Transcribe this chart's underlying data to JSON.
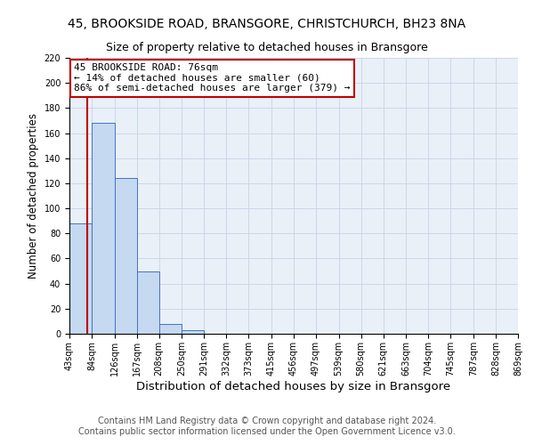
{
  "title": "45, BROOKSIDE ROAD, BRANSGORE, CHRISTCHURCH, BH23 8NA",
  "subtitle": "Size of property relative to detached houses in Bransgore",
  "xlabel": "Distribution of detached houses by size in Bransgore",
  "ylabel": "Number of detached properties",
  "bin_edges": [
    43,
    84,
    126,
    167,
    208,
    250,
    291,
    332,
    373,
    415,
    456,
    497,
    539,
    580,
    621,
    663,
    704,
    745,
    787,
    828,
    869
  ],
  "bin_counts": [
    88,
    168,
    124,
    50,
    8,
    3,
    0,
    0,
    0,
    0,
    0,
    0,
    0,
    0,
    0,
    0,
    0,
    0,
    0,
    0
  ],
  "bar_facecolor": "#c5d9f1",
  "bar_edgecolor": "#4472c4",
  "property_size": 76,
  "property_line_color": "#c00000",
  "annotation_text": "45 BROOKSIDE ROAD: 76sqm\n← 14% of detached houses are smaller (60)\n86% of semi-detached houses are larger (379) →",
  "annotation_box_edgecolor": "#c00000",
  "annotation_box_facecolor": "#ffffff",
  "ylim": [
    0,
    220
  ],
  "yticks": [
    0,
    20,
    40,
    60,
    80,
    100,
    120,
    140,
    160,
    180,
    200,
    220
  ],
  "grid_color": "#c8d8e8",
  "background_color": "#eaf0f8",
  "footer_line1": "Contains HM Land Registry data © Crown copyright and database right 2024.",
  "footer_line2": "Contains public sector information licensed under the Open Government Licence v3.0.",
  "title_fontsize": 10,
  "subtitle_fontsize": 9,
  "xlabel_fontsize": 9.5,
  "ylabel_fontsize": 8.5,
  "tick_label_fontsize": 7,
  "footer_fontsize": 7,
  "annotation_fontsize": 8
}
